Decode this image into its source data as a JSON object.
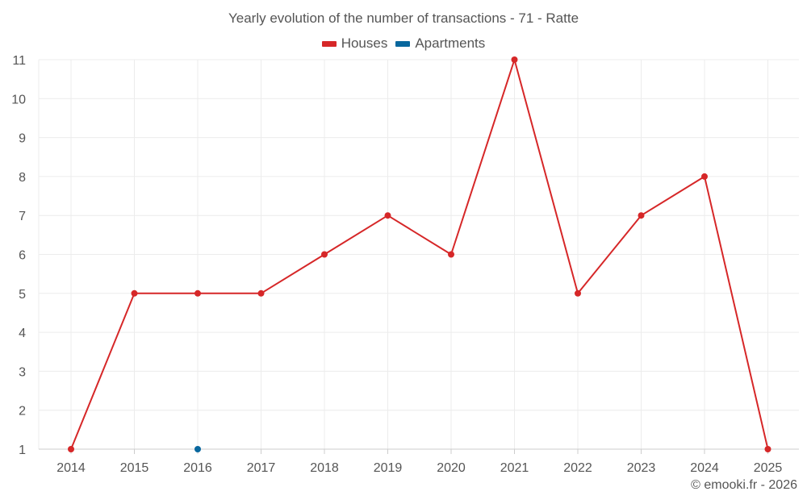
{
  "chart_data": {
    "type": "line",
    "title": "Yearly evolution of the number of transactions - 71 - Ratte",
    "categories": [
      "2014",
      "2015",
      "2016",
      "2017",
      "2018",
      "2019",
      "2020",
      "2021",
      "2022",
      "2023",
      "2024",
      "2025"
    ],
    "series": [
      {
        "name": "Houses",
        "color": "#d62728",
        "values": [
          1,
          5,
          5,
          5,
          6,
          7,
          6,
          11,
          5,
          7,
          8,
          1
        ]
      },
      {
        "name": "Apartments",
        "color": "#08679e",
        "values": [
          null,
          null,
          1,
          null,
          null,
          null,
          null,
          null,
          null,
          null,
          null,
          null
        ]
      }
    ],
    "ylim": [
      1,
      11
    ],
    "yticks": [
      "1",
      "2",
      "3",
      "4",
      "5",
      "6",
      "7",
      "8",
      "9",
      "10",
      "11"
    ],
    "xlabel": "",
    "ylabel": "",
    "grid": true,
    "legend_position": "top-center"
  },
  "credit": "© emooki.fr - 2026"
}
